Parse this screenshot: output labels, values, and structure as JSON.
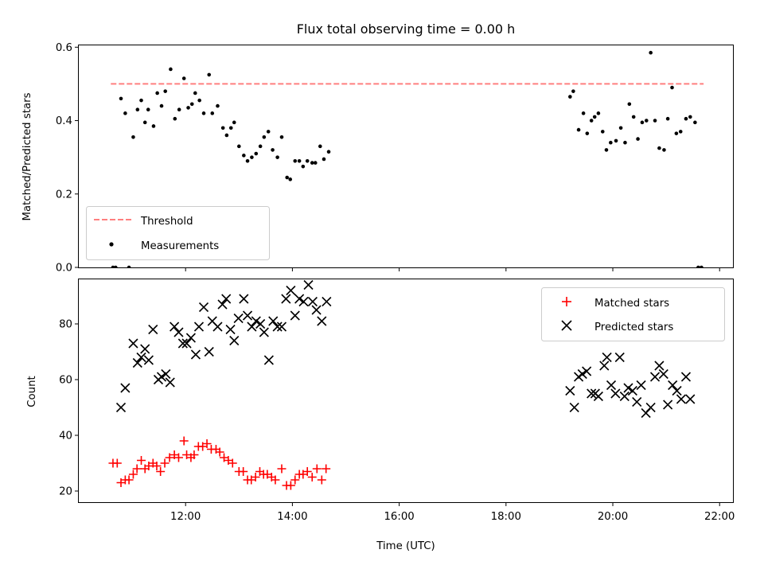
{
  "chart_data": [
    {
      "type": "scatter",
      "title": "Flux total observing time = 0.00 h",
      "xlabel": "",
      "ylabel": "Matched/Predicted stars",
      "xlim": [
        10.0,
        22.25
      ],
      "ylim": [
        0.0,
        0.605
      ],
      "yticks": [
        0.0,
        0.2,
        0.4,
        0.6
      ],
      "ytick_labels": [
        "0.0",
        "0.2",
        "0.4",
        "0.6"
      ],
      "xticks": [
        12,
        14,
        16,
        18,
        20,
        22
      ],
      "legend_placement": "lower-left",
      "threshold": {
        "name": "Threshold",
        "value": 0.5,
        "x_range": [
          10.6,
          21.7
        ],
        "color": "#ff7f7f",
        "style": "dashed"
      },
      "series": [
        {
          "name": "Measurements",
          "color": "#000000",
          "marker": "dot",
          "points": [
            [
              10.64,
              0.0
            ],
            [
              10.69,
              0.0
            ],
            [
              10.79,
              0.46
            ],
            [
              10.87,
              0.42
            ],
            [
              10.94,
              0.0
            ],
            [
              11.02,
              0.355
            ],
            [
              11.1,
              0.43
            ],
            [
              11.17,
              0.455
            ],
            [
              11.24,
              0.395
            ],
            [
              11.3,
              0.43
            ],
            [
              11.4,
              0.385
            ],
            [
              11.47,
              0.475
            ],
            [
              11.55,
              0.44
            ],
            [
              11.62,
              0.48
            ],
            [
              11.72,
              0.54
            ],
            [
              11.8,
              0.405
            ],
            [
              11.88,
              0.43
            ],
            [
              11.97,
              0.515
            ],
            [
              12.05,
              0.435
            ],
            [
              12.12,
              0.445
            ],
            [
              12.18,
              0.475
            ],
            [
              12.26,
              0.455
            ],
            [
              12.34,
              0.42
            ],
            [
              12.44,
              0.525
            ],
            [
              12.5,
              0.42
            ],
            [
              12.6,
              0.44
            ],
            [
              12.7,
              0.38
            ],
            [
              12.77,
              0.36
            ],
            [
              12.85,
              0.38
            ],
            [
              12.91,
              0.395
            ],
            [
              13.0,
              0.33
            ],
            [
              13.09,
              0.305
            ],
            [
              13.16,
              0.29
            ],
            [
              13.24,
              0.3
            ],
            [
              13.32,
              0.31
            ],
            [
              13.4,
              0.33
            ],
            [
              13.47,
              0.355
            ],
            [
              13.55,
              0.37
            ],
            [
              13.63,
              0.32
            ],
            [
              13.72,
              0.3
            ],
            [
              13.8,
              0.355
            ],
            [
              13.9,
              0.245
            ],
            [
              13.96,
              0.24
            ],
            [
              14.05,
              0.29
            ],
            [
              14.13,
              0.29
            ],
            [
              14.2,
              0.275
            ],
            [
              14.28,
              0.29
            ],
            [
              14.37,
              0.285
            ],
            [
              14.43,
              0.285
            ],
            [
              14.52,
              0.33
            ],
            [
              14.59,
              0.295
            ],
            [
              14.68,
              0.315
            ],
            [
              19.2,
              0.465
            ],
            [
              19.26,
              0.48
            ],
            [
              19.36,
              0.375
            ],
            [
              19.45,
              0.42
            ],
            [
              19.52,
              0.365
            ],
            [
              19.6,
              0.4
            ],
            [
              19.66,
              0.41
            ],
            [
              19.73,
              0.42
            ],
            [
              19.81,
              0.37
            ],
            [
              19.88,
              0.32
            ],
            [
              19.96,
              0.34
            ],
            [
              20.06,
              0.345
            ],
            [
              20.15,
              0.38
            ],
            [
              20.23,
              0.34
            ],
            [
              20.31,
              0.445
            ],
            [
              20.39,
              0.41
            ],
            [
              20.47,
              0.35
            ],
            [
              20.55,
              0.395
            ],
            [
              20.63,
              0.4
            ],
            [
              20.71,
              0.585
            ],
            [
              20.79,
              0.4
            ],
            [
              20.87,
              0.325
            ],
            [
              20.96,
              0.32
            ],
            [
              21.03,
              0.405
            ],
            [
              21.11,
              0.49
            ],
            [
              21.19,
              0.365
            ],
            [
              21.27,
              0.37
            ],
            [
              21.37,
              0.405
            ],
            [
              21.45,
              0.41
            ],
            [
              21.54,
              0.395
            ],
            [
              21.6,
              0.0
            ],
            [
              21.66,
              0.0
            ]
          ]
        }
      ]
    },
    {
      "type": "scatter",
      "title": "",
      "xlabel": "Time (UTC)",
      "ylabel": "Count",
      "xlim": [
        10.0,
        22.25
      ],
      "ylim": [
        16.0,
        96.0
      ],
      "yticks": [
        20,
        40,
        60,
        80
      ],
      "ytick_labels": [
        "20",
        "40",
        "60",
        "80"
      ],
      "xticks": [
        12,
        14,
        16,
        18,
        20,
        22
      ],
      "xtick_labels": [
        "12:00",
        "14:00",
        "16:00",
        "18:00",
        "20:00",
        "22:00"
      ],
      "legend_placement": "upper-right",
      "series": [
        {
          "name": "Matched stars",
          "color": "#ff0000",
          "marker": "plus",
          "points": [
            [
              10.64,
              30
            ],
            [
              10.72,
              30
            ],
            [
              10.79,
              23
            ],
            [
              10.87,
              24
            ],
            [
              10.94,
              24
            ],
            [
              11.02,
              26
            ],
            [
              11.09,
              28
            ],
            [
              11.17,
              31
            ],
            [
              11.24,
              28
            ],
            [
              11.31,
              29
            ],
            [
              11.39,
              30
            ],
            [
              11.46,
              29
            ],
            [
              11.53,
              27
            ],
            [
              11.61,
              30
            ],
            [
              11.7,
              32
            ],
            [
              11.79,
              33
            ],
            [
              11.87,
              32
            ],
            [
              11.97,
              38
            ],
            [
              12.02,
              33
            ],
            [
              12.1,
              32
            ],
            [
              12.16,
              33
            ],
            [
              12.24,
              36
            ],
            [
              12.32,
              36
            ],
            [
              12.4,
              37
            ],
            [
              12.48,
              35
            ],
            [
              12.57,
              35
            ],
            [
              12.64,
              34
            ],
            [
              12.72,
              32
            ],
            [
              12.8,
              31
            ],
            [
              12.88,
              30
            ],
            [
              13.0,
              27
            ],
            [
              13.08,
              27
            ],
            [
              13.16,
              24
            ],
            [
              13.23,
              24
            ],
            [
              13.31,
              25
            ],
            [
              13.39,
              27
            ],
            [
              13.46,
              26
            ],
            [
              13.53,
              26
            ],
            [
              13.61,
              25
            ],
            [
              13.68,
              24
            ],
            [
              13.8,
              28
            ],
            [
              13.89,
              22
            ],
            [
              13.97,
              22
            ],
            [
              14.05,
              24
            ],
            [
              14.13,
              26
            ],
            [
              14.2,
              26
            ],
            [
              14.28,
              27
            ],
            [
              14.37,
              25
            ],
            [
              14.46,
              28
            ],
            [
              14.55,
              24
            ],
            [
              14.63,
              28
            ]
          ]
        },
        {
          "name": "Predicted stars",
          "color": "#000000",
          "marker": "x",
          "points": [
            [
              10.79,
              50
            ],
            [
              10.87,
              57
            ],
            [
              11.02,
              73
            ],
            [
              11.1,
              66
            ],
            [
              11.17,
              68
            ],
            [
              11.24,
              71
            ],
            [
              11.31,
              67
            ],
            [
              11.39,
              78
            ],
            [
              11.49,
              60
            ],
            [
              11.55,
              61
            ],
            [
              11.63,
              62
            ],
            [
              11.71,
              59
            ],
            [
              11.79,
              79
            ],
            [
              11.87,
              77
            ],
            [
              11.95,
              73
            ],
            [
              12.02,
              73
            ],
            [
              12.1,
              75
            ],
            [
              12.19,
              69
            ],
            [
              12.25,
              79
            ],
            [
              12.34,
              86
            ],
            [
              12.44,
              70
            ],
            [
              12.5,
              81
            ],
            [
              12.6,
              79
            ],
            [
              12.69,
              87
            ],
            [
              12.76,
              89
            ],
            [
              12.84,
              78
            ],
            [
              12.91,
              74
            ],
            [
              12.99,
              82
            ],
            [
              13.09,
              89
            ],
            [
              13.16,
              83
            ],
            [
              13.24,
              79
            ],
            [
              13.32,
              81
            ],
            [
              13.4,
              80
            ],
            [
              13.47,
              77
            ],
            [
              13.56,
              67
            ],
            [
              13.64,
              81
            ],
            [
              13.72,
              79
            ],
            [
              13.8,
              79
            ],
            [
              13.88,
              89
            ],
            [
              13.97,
              92
            ],
            [
              14.05,
              83
            ],
            [
              14.13,
              89
            ],
            [
              14.21,
              88
            ],
            [
              14.3,
              94
            ],
            [
              14.38,
              88
            ],
            [
              14.45,
              85
            ],
            [
              14.55,
              81
            ],
            [
              14.64,
              88
            ],
            [
              19.2,
              56
            ],
            [
              19.28,
              50
            ],
            [
              19.36,
              61
            ],
            [
              19.43,
              62
            ],
            [
              19.51,
              63
            ],
            [
              19.6,
              55
            ],
            [
              19.67,
              55
            ],
            [
              19.73,
              54
            ],
            [
              19.84,
              65
            ],
            [
              19.89,
              68
            ],
            [
              19.97,
              58
            ],
            [
              20.05,
              55
            ],
            [
              20.13,
              68
            ],
            [
              20.22,
              54
            ],
            [
              20.29,
              57
            ],
            [
              20.37,
              56
            ],
            [
              20.45,
              52
            ],
            [
              20.53,
              58
            ],
            [
              20.62,
              48
            ],
            [
              20.71,
              50
            ],
            [
              20.79,
              61
            ],
            [
              20.87,
              65
            ],
            [
              20.95,
              62
            ],
            [
              21.03,
              51
            ],
            [
              21.12,
              58
            ],
            [
              21.2,
              56
            ],
            [
              21.28,
              53
            ],
            [
              21.37,
              61
            ],
            [
              21.45,
              53
            ]
          ]
        }
      ]
    }
  ]
}
